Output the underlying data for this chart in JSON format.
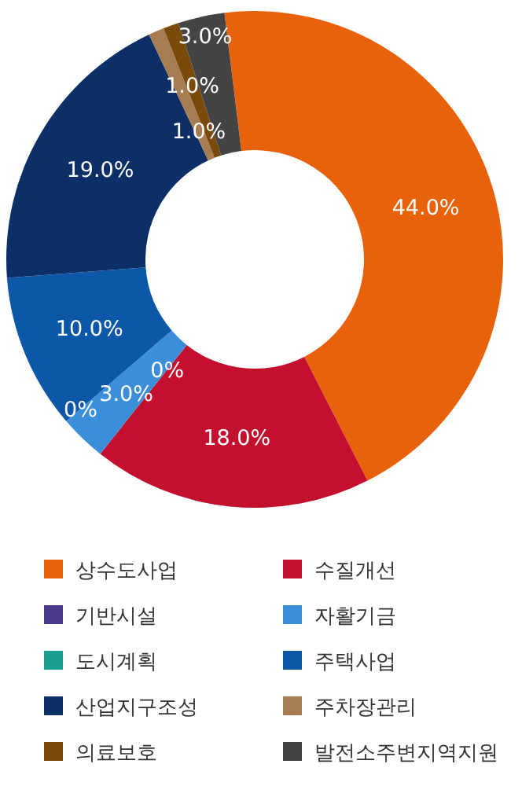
{
  "chart_data": {
    "type": "donut",
    "categories": [
      "상수도사업",
      "수질개선",
      "기반시설",
      "자활기금",
      "도시계획",
      "주택사업",
      "산업지구조성",
      "주차장관리",
      "의료보호",
      "발전소주변지역지원"
    ],
    "values": [
      44,
      18,
      0,
      3,
      0,
      10,
      19,
      1,
      1,
      3
    ],
    "value_labels": [
      "44.0%",
      "18.0%",
      "0%",
      "3.0%",
      "0%",
      "10.0%",
      "19.0%",
      "1.0%",
      "1.0%",
      "3.0%"
    ],
    "colors": [
      "#e8620c",
      "#c4102f",
      "#4b3a8c",
      "#3b8fd9",
      "#1a9e8f",
      "#0d57a8",
      "#0b2f66",
      "#a67c52",
      "#7a4a0a",
      "#444444"
    ],
    "legend": "bottom"
  }
}
